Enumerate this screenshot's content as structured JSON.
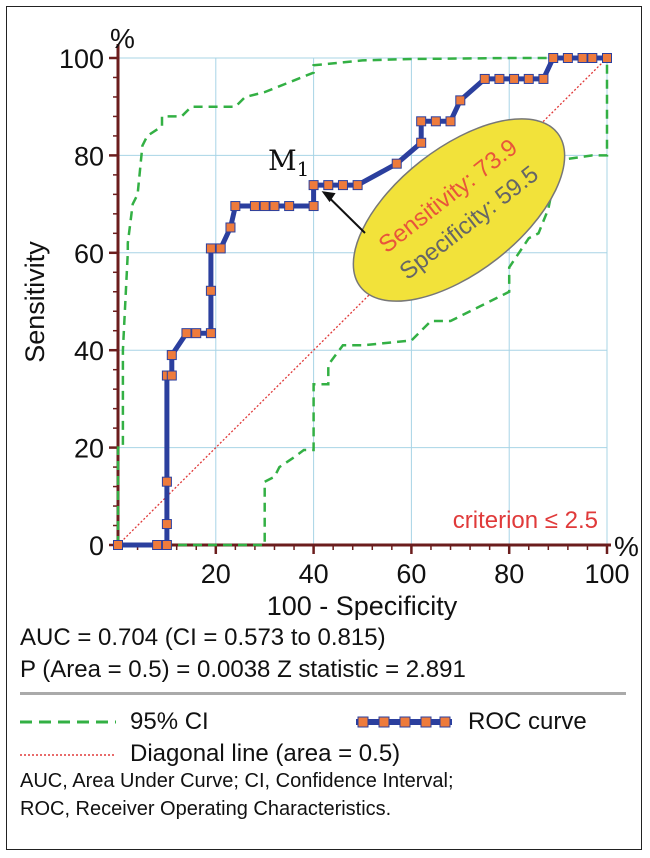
{
  "chart_data": {
    "type": "line",
    "xlabel": "100 - Specificity",
    "ylabel": "Sensitivity",
    "x_unit": "%",
    "y_unit": "%",
    "xlim": [
      0,
      100
    ],
    "ylim": [
      0,
      100
    ],
    "x_ticks": [
      "20",
      "40",
      "60",
      "80",
      "100"
    ],
    "y_ticks": [
      "0",
      "20",
      "40",
      "60",
      "80",
      "100"
    ],
    "grid": true,
    "series": [
      {
        "name": "ROC curve",
        "color": "#2b3f9e",
        "marker_color": "#ee7b3c",
        "points": [
          [
            0,
            0
          ],
          [
            8,
            0
          ],
          [
            10,
            0
          ],
          [
            10,
            4.3
          ],
          [
            10,
            13
          ],
          [
            10,
            34.8
          ],
          [
            11,
            34.8
          ],
          [
            11,
            39
          ],
          [
            14,
            43.5
          ],
          [
            16,
            43.5
          ],
          [
            19,
            43.5
          ],
          [
            19,
            52.2
          ],
          [
            19,
            60.9
          ],
          [
            21,
            60.9
          ],
          [
            23,
            65.2
          ],
          [
            24,
            69.6
          ],
          [
            28,
            69.6
          ],
          [
            30,
            69.6
          ],
          [
            32,
            69.6
          ],
          [
            35,
            69.6
          ],
          [
            40,
            69.6
          ],
          [
            40,
            73.9
          ],
          [
            43,
            73.9
          ],
          [
            46,
            73.9
          ],
          [
            49,
            73.9
          ],
          [
            57,
            78.3
          ],
          [
            62,
            82.6
          ],
          [
            62,
            87
          ],
          [
            65,
            87
          ],
          [
            68,
            87
          ],
          [
            70,
            91.3
          ],
          [
            75,
            95.7
          ],
          [
            78,
            95.7
          ],
          [
            81,
            95.7
          ],
          [
            84,
            95.7
          ],
          [
            87,
            95.7
          ],
          [
            89,
            100
          ],
          [
            92,
            100
          ],
          [
            95,
            100
          ],
          [
            97,
            100
          ],
          [
            100,
            100
          ]
        ]
      },
      {
        "name": "95% CI",
        "style": "dashed",
        "color": "#33b044",
        "points": [
          [
            0,
            0
          ],
          [
            0,
            20
          ],
          [
            1,
            20
          ],
          [
            1,
            40
          ],
          [
            2,
            60
          ],
          [
            2,
            62
          ],
          [
            3,
            70
          ],
          [
            4,
            72
          ],
          [
            5,
            82
          ],
          [
            6,
            84
          ],
          [
            9,
            86
          ],
          [
            9,
            88
          ],
          [
            13,
            88
          ],
          [
            15,
            90
          ],
          [
            24,
            90
          ],
          [
            26,
            92
          ],
          [
            30,
            93
          ],
          [
            35,
            95
          ],
          [
            40,
            97
          ],
          [
            40,
            98.5
          ],
          [
            50,
            99.5
          ],
          [
            60,
            99.8
          ],
          [
            80,
            100
          ],
          [
            100,
            100
          ]
        ]
      },
      {
        "name": "95% CI",
        "style": "dashed",
        "color": "#33b044",
        "points": [
          [
            0,
            0
          ],
          [
            30,
            0
          ],
          [
            30,
            13
          ],
          [
            32,
            14
          ],
          [
            33,
            16
          ],
          [
            36,
            18
          ],
          [
            38,
            19.5
          ],
          [
            40,
            19.5
          ],
          [
            40,
            33
          ],
          [
            43,
            33
          ],
          [
            43,
            37
          ],
          [
            46,
            41
          ],
          [
            50,
            41
          ],
          [
            60,
            42
          ],
          [
            62,
            44
          ],
          [
            64,
            46
          ],
          [
            68,
            46
          ],
          [
            74,
            49
          ],
          [
            80,
            52
          ],
          [
            80,
            57
          ],
          [
            82,
            60
          ],
          [
            84,
            63
          ],
          [
            86,
            64
          ],
          [
            88,
            69
          ],
          [
            89,
            74
          ],
          [
            90,
            76
          ],
          [
            90,
            79
          ],
          [
            97,
            80
          ],
          [
            100,
            80
          ],
          [
            100,
            100
          ]
        ]
      },
      {
        "name": "Diagonal line (area = 0.5)",
        "style": "dotted",
        "color": "#e03a3a",
        "points": [
          [
            0,
            0
          ],
          [
            100,
            100
          ]
        ]
      }
    ],
    "annotations": {
      "point_label": "M",
      "point_label_sub": "1",
      "point": [
        40,
        73.9
      ],
      "sensitivity_label": "Sensitivity:",
      "sensitivity_value": "73.9",
      "specificity_label": "Specificity:",
      "specificity_value": "59.5",
      "criterion": "criterion ≤ 2.5"
    }
  },
  "stats": {
    "line1": "AUC = 0.704 (CI = 0.573 to 0.815)",
    "line2": "P (Area = 0.5) = 0.0038   Z statistic = 2.891"
  },
  "legend": {
    "ci": "95% CI",
    "roc": "ROC curve",
    "diagonal": "Diagonal line (area = 0.5)"
  },
  "footnote": {
    "line1": "AUC, Area Under Curve; CI, Confidence Interval;",
    "line2": "ROC, Receiver Operating Characteristics."
  },
  "colors": {
    "axis": "#6b1d1d",
    "grid": "#a8d4e6",
    "ellipse_fill": "#f2e23a",
    "ellipse_stroke": "#777777",
    "sens_text": "#e8553a",
    "spec_text": "#666666"
  }
}
